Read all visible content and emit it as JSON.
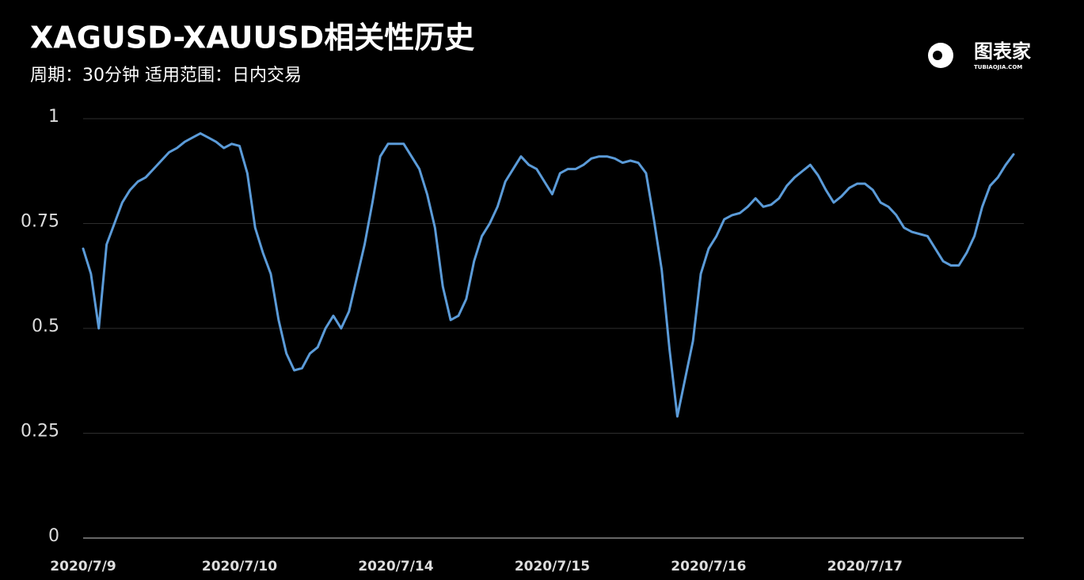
{
  "chart_data": {
    "type": "line",
    "title": "XAGUSD-XAUUSD相关性历史",
    "subtitle": "周期：30分钟  适用范围：日内交易",
    "brand": "图表家",
    "brand_url": "TUBIAOJIA.COM",
    "color": "#5b9bd8",
    "ylim": [
      0,
      1
    ],
    "yticks": [
      0,
      0.25,
      0.5,
      0.75,
      1
    ],
    "grid": true,
    "categories": [
      "2020/7/9",
      null,
      null,
      null,
      null,
      null,
      null,
      null,
      null,
      null,
      null,
      null,
      null,
      null,
      null,
      null,
      null,
      null,
      null,
      null,
      "2020/7/10",
      null,
      null,
      null,
      null,
      null,
      null,
      null,
      null,
      null,
      null,
      null,
      null,
      null,
      null,
      null,
      null,
      null,
      null,
      null,
      "2020/7/14",
      null,
      null,
      null,
      null,
      null,
      null,
      null,
      null,
      null,
      null,
      null,
      null,
      null,
      null,
      null,
      null,
      null,
      null,
      null,
      "2020/7/15",
      null,
      null,
      null,
      null,
      null,
      null,
      null,
      null,
      null,
      null,
      null,
      null,
      null,
      null,
      null,
      null,
      null,
      null,
      null,
      "2020/7/16",
      null,
      null,
      null,
      null,
      null,
      null,
      null,
      null,
      null,
      null,
      null,
      null,
      null,
      null,
      null,
      null,
      null,
      null,
      null,
      "2020/7/17",
      null,
      null,
      null,
      null,
      null,
      null,
      null,
      null,
      null,
      null,
      null,
      null,
      null,
      null,
      null,
      null,
      null,
      null,
      null
    ],
    "values": [
      0.69,
      0.63,
      0.5,
      0.7,
      0.75,
      0.8,
      0.83,
      0.85,
      0.86,
      0.88,
      0.9,
      0.92,
      0.93,
      0.945,
      0.955,
      0.965,
      0.955,
      0.945,
      0.93,
      0.94,
      0.935,
      0.87,
      0.74,
      0.68,
      0.63,
      0.52,
      0.44,
      0.4,
      0.405,
      0.44,
      0.455,
      0.5,
      0.53,
      0.5,
      0.54,
      0.62,
      0.7,
      0.8,
      0.91,
      0.94,
      0.94,
      0.94,
      0.91,
      0.88,
      0.82,
      0.74,
      0.6,
      0.52,
      0.53,
      0.57,
      0.66,
      0.72,
      0.75,
      0.79,
      0.85,
      0.88,
      0.91,
      0.89,
      0.88,
      0.85,
      0.82,
      0.87,
      0.88,
      0.88,
      0.89,
      0.905,
      0.91,
      0.91,
      0.905,
      0.895,
      0.9,
      0.895,
      0.87,
      0.76,
      0.64,
      0.45,
      0.29,
      0.38,
      0.47,
      0.63,
      0.69,
      0.72,
      0.76,
      0.77,
      0.775,
      0.79,
      0.81,
      0.79,
      0.795,
      0.81,
      0.84,
      0.86,
      0.875,
      0.89,
      0.865,
      0.83,
      0.8,
      0.815,
      0.835,
      0.845,
      0.845,
      0.83,
      0.8,
      0.79,
      0.77,
      0.74,
      0.73,
      0.725,
      0.72,
      0.69,
      0.66,
      0.65,
      0.65,
      0.68,
      0.72,
      0.79,
      0.84,
      0.86,
      0.89,
      0.915
    ]
  }
}
